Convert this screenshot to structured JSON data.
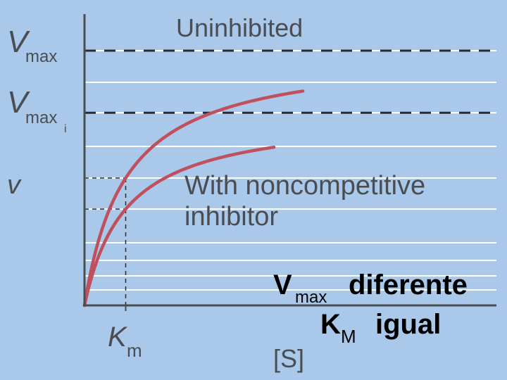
{
  "chart_data": {
    "type": "line",
    "title": "",
    "xlabel": "[S]",
    "ylabel": "v",
    "xlim": [
      0,
      10
    ],
    "ylim": [
      0,
      8.2
    ],
    "x_tick_label": {
      "main": "K",
      "sub": "m"
    },
    "km": 1.0,
    "grid": true,
    "series": [
      {
        "name": "Uninhibited",
        "vmax": 8.2,
        "km": 1.0,
        "x_max": 5.3,
        "color": "#c0505e"
      },
      {
        "name": "With noncompetitive inhibitor",
        "vmax": 6.2,
        "km": 1.0,
        "x_max": 4.6,
        "color": "#c0505e"
      }
    ],
    "reference_lines": [
      {
        "label_main": "V",
        "label_sub": "max",
        "value": 8.2
      },
      {
        "label_main": "V",
        "label_sub": "max",
        "label_subsub": "i",
        "value": 6.2
      }
    ],
    "half_lines": [
      4.1,
      3.1
    ]
  },
  "annotations": {
    "uninhibited": "Uninhibited",
    "inhibitor_line1": "With noncompetitive",
    "inhibitor_line2": "inhibitor"
  },
  "caption": {
    "vmax_main": "V",
    "vmax_sub": "max",
    "vmax_text": "diferente",
    "km_main": "K",
    "km_sub": "M",
    "km_text": "igual"
  },
  "colors": {
    "background": "#a9c8ea",
    "curve": "#c0505e",
    "axis": "#4a4d52",
    "gridline": "#ffffff"
  }
}
